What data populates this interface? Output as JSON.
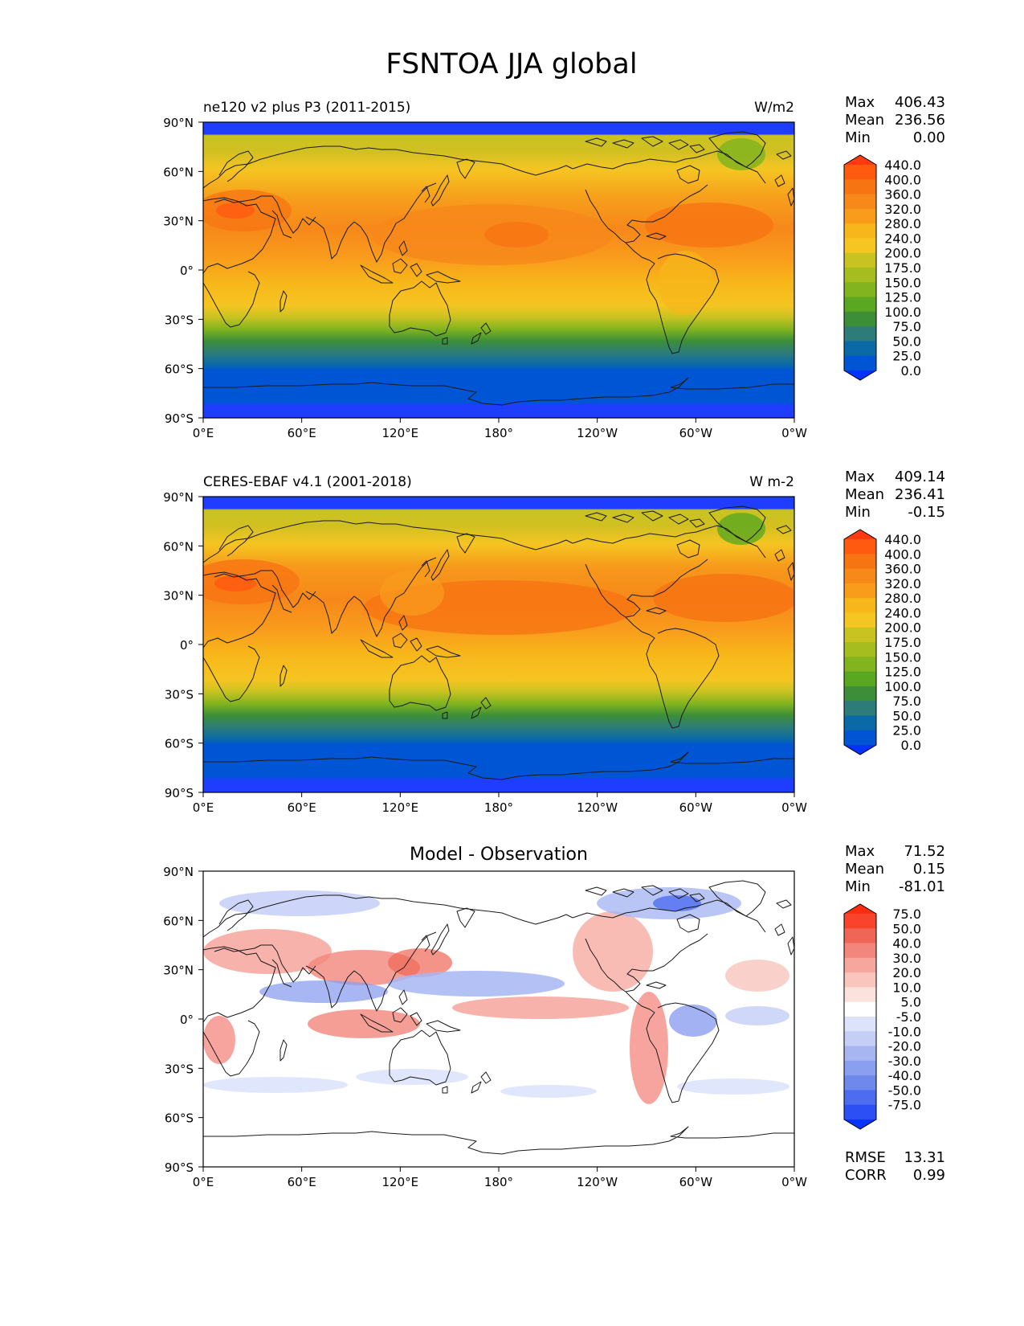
{
  "title": "FSNTOA JJA global",
  "lat_ticks": [
    "90°N",
    "60°N",
    "30°N",
    "0°",
    "30°S",
    "60°S",
    "90°S"
  ],
  "lon_ticks": [
    "0°E",
    "60°E",
    "120°E",
    "180°",
    "120°W",
    "60°W",
    "0°W"
  ],
  "stat_labels": {
    "max": "Max",
    "mean": "Mean",
    "min": "Min",
    "rmse": "RMSE",
    "corr": "CORR"
  },
  "panels": [
    {
      "left_title": "ne120 v2 plus P3 (2011-2015)",
      "center_title": "",
      "right_title": "W/m2",
      "stats": {
        "max": "406.43",
        "mean": "236.56",
        "min": "0.00"
      },
      "colorbar": {
        "levels": [
          "440.0",
          "400.0",
          "360.0",
          "320.0",
          "280.0",
          "240.0",
          "200.0",
          "175.0",
          "150.0",
          "125.0",
          "100.0",
          "75.0",
          "50.0",
          "25.0",
          "0.0"
        ],
        "colors": [
          "#ff3a10",
          "#ff5a10",
          "#f77413",
          "#f7881a",
          "#f99c1c",
          "#f7b619",
          "#f5c522",
          "#c8c321",
          "#a6bd1f",
          "#82b41f",
          "#5aa821",
          "#3c8f38",
          "#2d7c7a",
          "#0a6aa7",
          "#0055d4",
          "#0033ff"
        ]
      }
    },
    {
      "left_title": "CERES-EBAF v4.1 (2001-2018)",
      "center_title": "",
      "right_title": "W m-2",
      "stats": {
        "max": "409.14",
        "mean": "236.41",
        "min": "-0.15"
      },
      "colorbar": {
        "levels": [
          "440.0",
          "400.0",
          "360.0",
          "320.0",
          "280.0",
          "240.0",
          "200.0",
          "175.0",
          "150.0",
          "125.0",
          "100.0",
          "75.0",
          "50.0",
          "25.0",
          "0.0"
        ],
        "colors": [
          "#ff3a10",
          "#ff5a10",
          "#f77413",
          "#f7881a",
          "#f99c1c",
          "#f7b619",
          "#f5c522",
          "#c8c321",
          "#a6bd1f",
          "#82b41f",
          "#5aa821",
          "#3c8f38",
          "#2d7c7a",
          "#0a6aa7",
          "#0055d4",
          "#0033ff"
        ]
      }
    },
    {
      "left_title": "",
      "center_title": "Model - Observation",
      "right_title": "",
      "stats": {
        "max": "71.52",
        "mean": "0.15",
        "min": "-81.01",
        "rmse": "13.31",
        "corr": "0.99"
      },
      "colorbar": {
        "levels": [
          "75.0",
          "50.0",
          "40.0",
          "30.0",
          "20.0",
          "10.0",
          "5.0",
          "-5.0",
          "-10.0",
          "-20.0",
          "-30.0",
          "-40.0",
          "-50.0",
          "-75.0"
        ],
        "colors": [
          "#ff2d10",
          "#f8432d",
          "#f06656",
          "#f3867c",
          "#f6a69c",
          "#f9c5bd",
          "#fce2dd",
          "#ffffff",
          "#dde3fb",
          "#c4cef7",
          "#a7b6f3",
          "#8b9ff0",
          "#6e88ec",
          "#4d6df0",
          "#2b4ff5",
          "#0a33ff"
        ]
      }
    }
  ],
  "chart_data": [
    {
      "type": "heatmap",
      "title": "ne120 v2 plus P3 (2011-2015)",
      "units": "W/m2",
      "x_ticks": [
        "0°E",
        "60°E",
        "120°E",
        "180°",
        "120°W",
        "60°W",
        "0°W"
      ],
      "y_ticks": [
        "90°N",
        "60°N",
        "30°N",
        "0°",
        "30°S",
        "60°S",
        "90°S"
      ],
      "stats": {
        "max": 406.43,
        "mean": 236.56,
        "min": 0.0
      },
      "color_levels": [
        0,
        25,
        50,
        75,
        100,
        125,
        150,
        175,
        200,
        240,
        280,
        320,
        360,
        400,
        440
      ],
      "zonal_mean_approx": {
        "lat": [
          85,
          75,
          60,
          45,
          30,
          15,
          0,
          -15,
          -30,
          -45,
          -60,
          -75,
          -85
        ],
        "value": [
          195,
          205,
          250,
          300,
          320,
          300,
          270,
          250,
          200,
          100,
          25,
          10,
          5
        ]
      }
    },
    {
      "type": "heatmap",
      "title": "CERES-EBAF v4.1 (2001-2018)",
      "units": "W m-2",
      "x_ticks": [
        "0°E",
        "60°E",
        "120°E",
        "180°",
        "120°W",
        "60°W",
        "0°W"
      ],
      "y_ticks": [
        "90°N",
        "60°N",
        "30°N",
        "0°",
        "30°S",
        "60°S",
        "90°S"
      ],
      "stats": {
        "max": 409.14,
        "mean": 236.41,
        "min": -0.15
      },
      "color_levels": [
        0,
        25,
        50,
        75,
        100,
        125,
        150,
        175,
        200,
        240,
        280,
        320,
        360,
        400,
        440
      ],
      "zonal_mean_approx": {
        "lat": [
          85,
          75,
          60,
          45,
          30,
          15,
          0,
          -15,
          -30,
          -45,
          -60,
          -75,
          -85
        ],
        "value": [
          195,
          205,
          255,
          305,
          325,
          300,
          265,
          245,
          200,
          100,
          25,
          10,
          5
        ]
      }
    },
    {
      "type": "heatmap",
      "title": "Model - Observation",
      "x_ticks": [
        "0°E",
        "60°E",
        "120°E",
        "180°",
        "120°W",
        "60°W",
        "0°W"
      ],
      "y_ticks": [
        "90°N",
        "60°N",
        "30°N",
        "0°",
        "30°S",
        "60°S",
        "90°S"
      ],
      "stats": {
        "max": 71.52,
        "mean": 0.15,
        "min": -81.01,
        "rmse": 13.31,
        "corr": 0.99
      },
      "color_levels": [
        -75,
        -50,
        -40,
        -30,
        -20,
        -10,
        -5,
        5,
        10,
        20,
        30,
        40,
        50,
        75
      ]
    }
  ]
}
